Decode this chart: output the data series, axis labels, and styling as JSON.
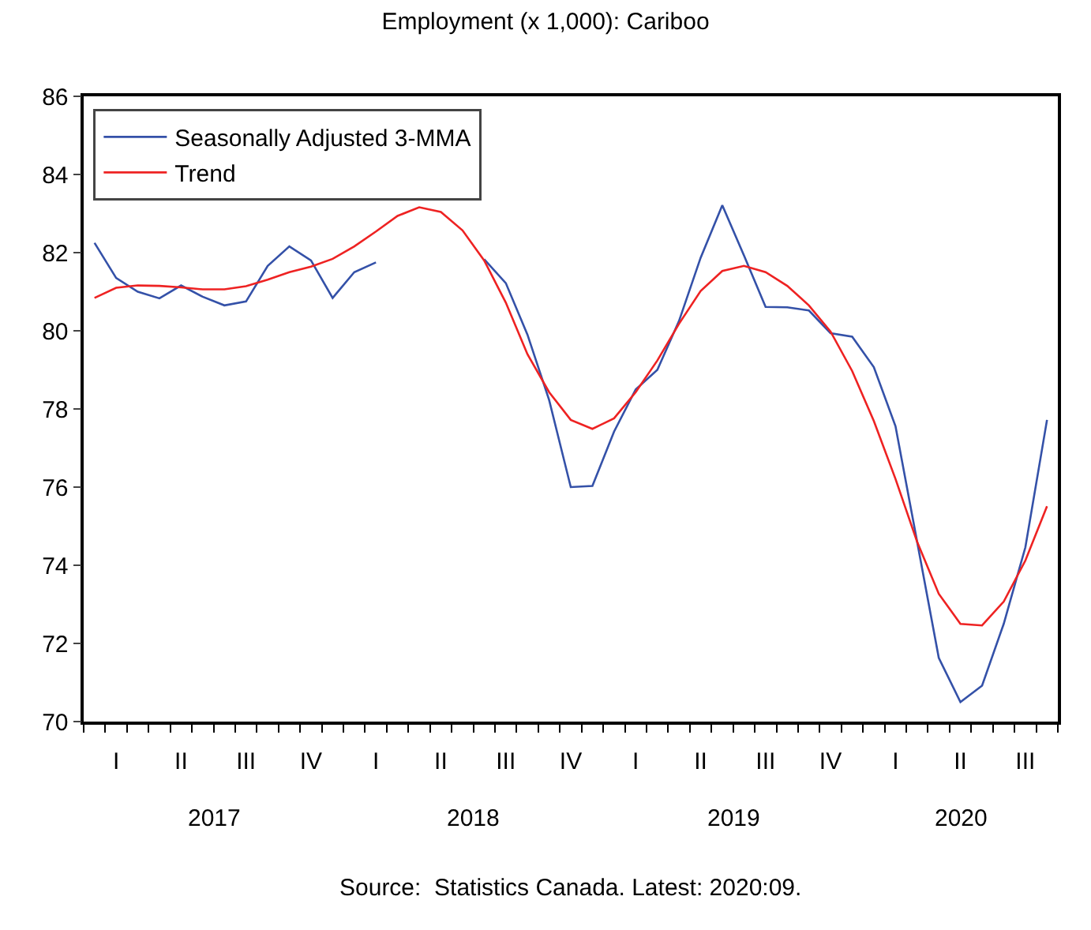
{
  "chart_data": {
    "type": "line",
    "title": "Employment (x 1,000): Cariboo",
    "categories": [
      null,
      "I",
      null,
      null,
      "II",
      null,
      null,
      "III",
      null,
      null,
      "IV",
      null,
      null,
      "I",
      null,
      null,
      "II",
      null,
      null,
      "III",
      null,
      null,
      "IV",
      null,
      null,
      "I",
      null,
      null,
      "II",
      null,
      null,
      "III",
      null,
      null,
      "IV",
      null,
      null,
      "I",
      null,
      null,
      "II",
      null,
      null,
      "III",
      null
    ],
    "series": [
      {
        "name": "Seasonally Adjusted 3-MMA",
        "color": "#3451a8",
        "values": [
          82.25,
          81.35,
          81.0,
          80.83,
          81.16,
          80.87,
          80.65,
          80.75,
          81.66,
          82.16,
          81.8,
          80.84,
          81.5,
          81.75,
          null,
          null,
          null,
          null,
          81.83,
          81.22,
          79.9,
          78.23,
          76.0,
          76.03,
          77.42,
          78.5,
          79.0,
          80.25,
          81.87,
          83.21,
          81.93,
          80.61,
          80.6,
          80.52,
          79.94,
          79.85,
          79.07,
          77.56,
          74.6,
          71.63,
          70.5,
          70.92,
          72.5,
          74.46,
          77.72
        ]
      },
      {
        "name": "Trend",
        "color": "#ee2222",
        "values": [
          80.84,
          81.1,
          81.16,
          81.15,
          81.11,
          81.06,
          81.06,
          81.14,
          81.31,
          81.5,
          81.64,
          81.84,
          82.16,
          82.54,
          82.94,
          83.16,
          83.04,
          82.57,
          81.8,
          80.72,
          79.4,
          78.43,
          77.72,
          77.49,
          77.76,
          78.43,
          79.24,
          80.18,
          81.02,
          81.53,
          81.66,
          81.5,
          81.15,
          80.65,
          79.98,
          78.97,
          77.69,
          76.21,
          74.6,
          73.27,
          72.5,
          72.46,
          73.07,
          74.12,
          75.51
        ]
      }
    ],
    "ylim": [
      70,
      86
    ],
    "yticks": [
      70,
      72,
      74,
      76,
      78,
      80,
      82,
      84,
      86
    ],
    "grid": false,
    "legend": "top left",
    "marker": "none",
    "line_style": "solid",
    "annotations": [
      "2017",
      "2018",
      "2019",
      "2020",
      "Source:  Statistics Canada. Latest: 2020:09."
    ]
  }
}
